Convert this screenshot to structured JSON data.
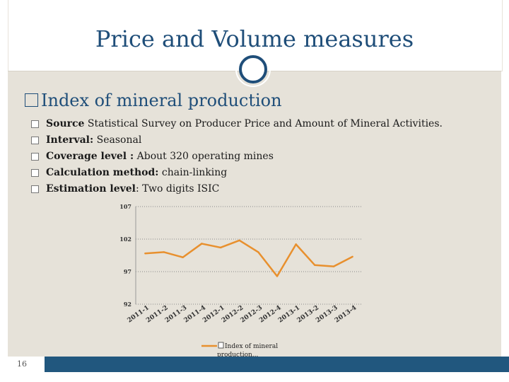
{
  "title": "Price and Volume measures",
  "heading": "Index of mineral production",
  "bullets": [
    {
      "label": "Source",
      "text": " Statistical Survey on Producer Price and Amount of Mineral Activities."
    },
    {
      "label": "Interval:",
      "text": " Seasonal"
    },
    {
      "label": "Coverage level :",
      "text": " About 320 operating mines"
    },
    {
      "label": "Calculation method:",
      "text": " chain-linking"
    },
    {
      "label": "Estimation level",
      "text": ":  Two digits ISIC"
    }
  ],
  "page_number": "16",
  "colors": {
    "accent": "#1f4e79",
    "line": "#e8902e",
    "footer": "#21577e"
  },
  "chart_data": {
    "type": "line",
    "title": "",
    "xlabel": "",
    "ylabel": "",
    "ylim": [
      92,
      107
    ],
    "yticks": [
      107,
      102,
      97,
      92
    ],
    "categories": [
      "2011-1",
      "2011-2",
      "2011-3",
      "2011-4",
      "2012-1",
      "2012-2",
      "2012-3",
      "2012-4",
      "2013-1",
      "2013-2",
      "2013-3",
      "2013-4"
    ],
    "series": [
      {
        "name": "Index of mineral production...",
        "values": [
          99.8,
          100.0,
          99.2,
          101.3,
          100.7,
          101.8,
          100.0,
          96.3,
          101.2,
          98.0,
          97.8,
          99.3
        ]
      }
    ],
    "legend_position": "bottom"
  }
}
